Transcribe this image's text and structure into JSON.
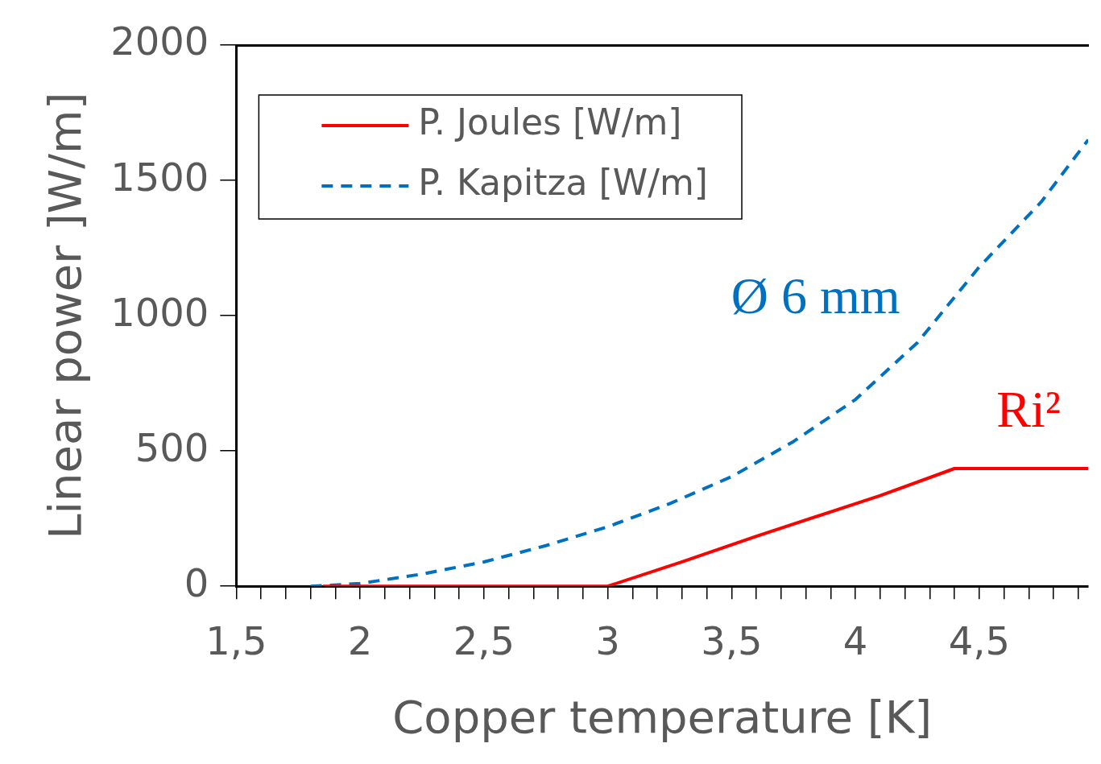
{
  "chart_data": {
    "type": "line",
    "xlabel": "Copper temperature [K]",
    "ylabel": "Linear power ]W/m]",
    "xlim": [
      1.5,
      4.94
    ],
    "ylim": [
      0,
      2000
    ],
    "xticks": [
      {
        "value": 1.5,
        "label": "1,5"
      },
      {
        "value": 1.6,
        "label": null
      },
      {
        "value": 1.7,
        "label": null
      },
      {
        "value": 1.8,
        "label": null
      },
      {
        "value": 1.9,
        "label": null
      },
      2,
      {
        "value": 2.1,
        "label": null
      },
      {
        "value": 2.2,
        "label": null
      },
      {
        "value": 2.3,
        "label": null
      },
      {
        "value": 2.4,
        "label": null
      },
      {
        "value": 2.5,
        "label": "2,5"
      },
      {
        "value": 2.6,
        "label": null
      },
      {
        "value": 2.7,
        "label": null
      },
      {
        "value": 2.8,
        "label": null
      },
      {
        "value": 2.9,
        "label": null
      },
      3,
      {
        "value": 3.1,
        "label": null
      },
      {
        "value": 3.2,
        "label": null
      },
      {
        "value": 3.3,
        "label": null
      },
      {
        "value": 3.4,
        "label": null
      },
      {
        "value": 3.5,
        "label": "3,5"
      },
      {
        "value": 3.6,
        "label": null
      },
      {
        "value": 3.7,
        "label": null
      },
      {
        "value": 3.8,
        "label": null
      },
      {
        "value": 3.9,
        "label": null
      },
      4,
      {
        "value": 4.1,
        "label": null
      },
      {
        "value": 4.2,
        "label": null
      },
      {
        "value": 4.3,
        "label": null
      },
      {
        "value": 4.4,
        "label": null
      },
      {
        "value": 4.5,
        "label": "4,5"
      },
      {
        "value": 4.6,
        "label": null
      },
      {
        "value": 4.7,
        "label": null
      },
      {
        "value": 4.8,
        "label": null
      },
      {
        "value": 4.9,
        "label": null
      }
    ],
    "yticks": [
      0,
      500,
      1000,
      1500,
      2000
    ],
    "grid": false,
    "legend": "top left",
    "series": [
      {
        "name": "P. Joules [W/m]",
        "color": "#ff0000",
        "line_style": "solid",
        "x": [
          1.85,
          2,
          2.5,
          3,
          3.3,
          3.6,
          4.1,
          4.4,
          4.94
        ],
        "values": [
          0,
          0,
          0,
          0,
          90,
          185,
          335,
          435,
          435
        ]
      },
      {
        "name": "P. Kapitza [W/m]",
        "color": "#0070c0",
        "line_style": "dashed",
        "x": [
          1.8,
          2,
          2.25,
          2.5,
          2.75,
          3,
          3.25,
          3.5,
          3.75,
          4,
          4.25,
          4.5,
          4.75,
          4.94
        ],
        "values": [
          0,
          10,
          45,
          90,
          150,
          220,
          305,
          405,
          535,
          690,
          900,
          1180,
          1420,
          1650
        ]
      }
    ],
    "annotations": [
      "Ø 6 mm",
      "Ri²"
    ]
  }
}
